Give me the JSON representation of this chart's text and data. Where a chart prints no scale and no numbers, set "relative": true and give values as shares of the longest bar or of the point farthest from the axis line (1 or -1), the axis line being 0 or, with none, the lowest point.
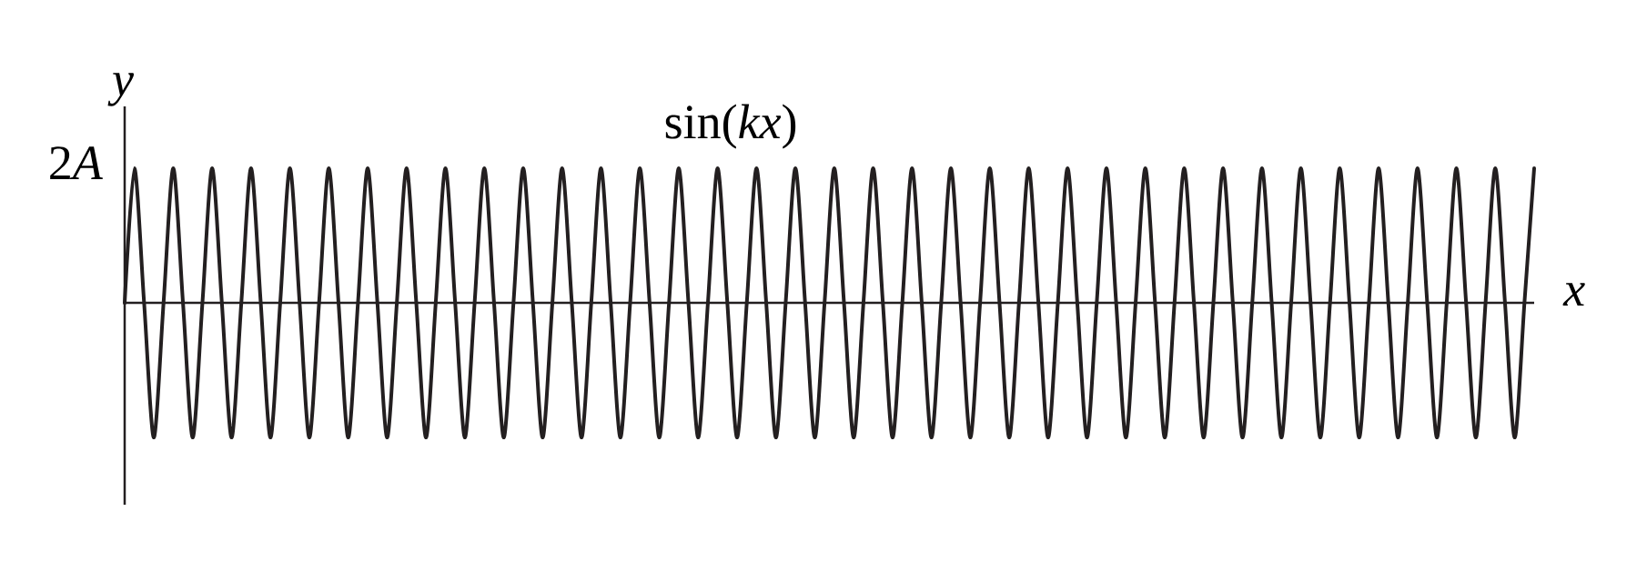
{
  "chart_data": {
    "type": "line",
    "title": "sin(*kx*)",
    "xlabel": "x",
    "ylabel": "y",
    "relative": true,
    "annotations": [
      "2A"
    ],
    "categories": [
      null,
      null,
      null,
      null,
      null,
      null,
      null,
      null,
      null,
      null,
      null,
      null,
      null,
      null,
      null,
      null,
      null,
      null,
      null,
      null,
      null,
      null,
      null,
      null,
      null,
      null,
      null,
      null,
      null,
      null,
      null,
      null,
      null,
      null,
      null,
      null,
      null,
      null,
      null,
      null,
      null,
      null,
      null,
      null,
      null,
      null,
      null,
      null,
      null,
      null,
      null,
      null,
      null,
      null,
      null,
      null,
      null,
      null,
      null,
      null,
      null,
      null,
      null,
      null,
      null,
      null,
      null,
      null,
      null,
      null,
      null,
      null,
      null,
      null,
      null,
      null,
      null,
      null,
      null,
      null,
      null,
      null,
      null,
      null,
      null,
      null,
      null,
      null,
      null,
      null,
      null,
      null,
      null,
      null,
      null,
      null,
      null,
      null,
      null,
      null,
      null,
      null,
      null,
      null,
      null,
      null,
      null,
      null,
      null,
      null,
      null,
      null,
      null,
      null,
      null,
      null,
      null,
      null,
      null,
      null,
      null,
      null,
      null,
      null,
      null,
      null,
      null,
      null,
      null,
      null,
      null,
      null,
      null,
      null,
      null,
      null,
      null,
      null,
      null,
      null,
      null,
      null,
      null,
      null,
      null,
      null
    ],
    "values": [
      0,
      1,
      0,
      -1,
      0,
      1,
      0,
      -1,
      0,
      1,
      0,
      -1,
      0,
      1,
      0,
      -1,
      0,
      1,
      0,
      -1,
      0,
      1,
      0,
      -1,
      0,
      1,
      0,
      -1,
      0,
      1,
      0,
      -1,
      0,
      1,
      0,
      -1,
      0,
      1,
      0,
      -1,
      0,
      1,
      0,
      -1,
      0,
      1,
      0,
      -1,
      0,
      1,
      0,
      -1,
      0,
      1,
      0,
      -1,
      0,
      1,
      0,
      -1,
      0,
      1,
      0,
      -1,
      0,
      1,
      0,
      -1,
      0,
      1,
      0,
      -1,
      0,
      1,
      0,
      -1,
      0,
      1,
      0,
      -1,
      0,
      1,
      0,
      -1,
      0,
      1,
      0,
      -1,
      0,
      1,
      0,
      -1,
      0,
      1,
      0,
      -1,
      0,
      1,
      0,
      -1,
      0,
      1,
      0,
      -1,
      0,
      1,
      0,
      -1,
      0,
      1,
      0,
      -1,
      0,
      1,
      0,
      -1,
      0,
      1,
      0,
      -1,
      0,
      1,
      0,
      -1,
      0,
      1,
      0,
      -1,
      0,
      1,
      0,
      -1,
      0,
      1,
      0,
      -1,
      0,
      1,
      0,
      -1,
      0,
      1,
      0,
      -1,
      0,
      1
    ],
    "color": "#231f20"
  }
}
